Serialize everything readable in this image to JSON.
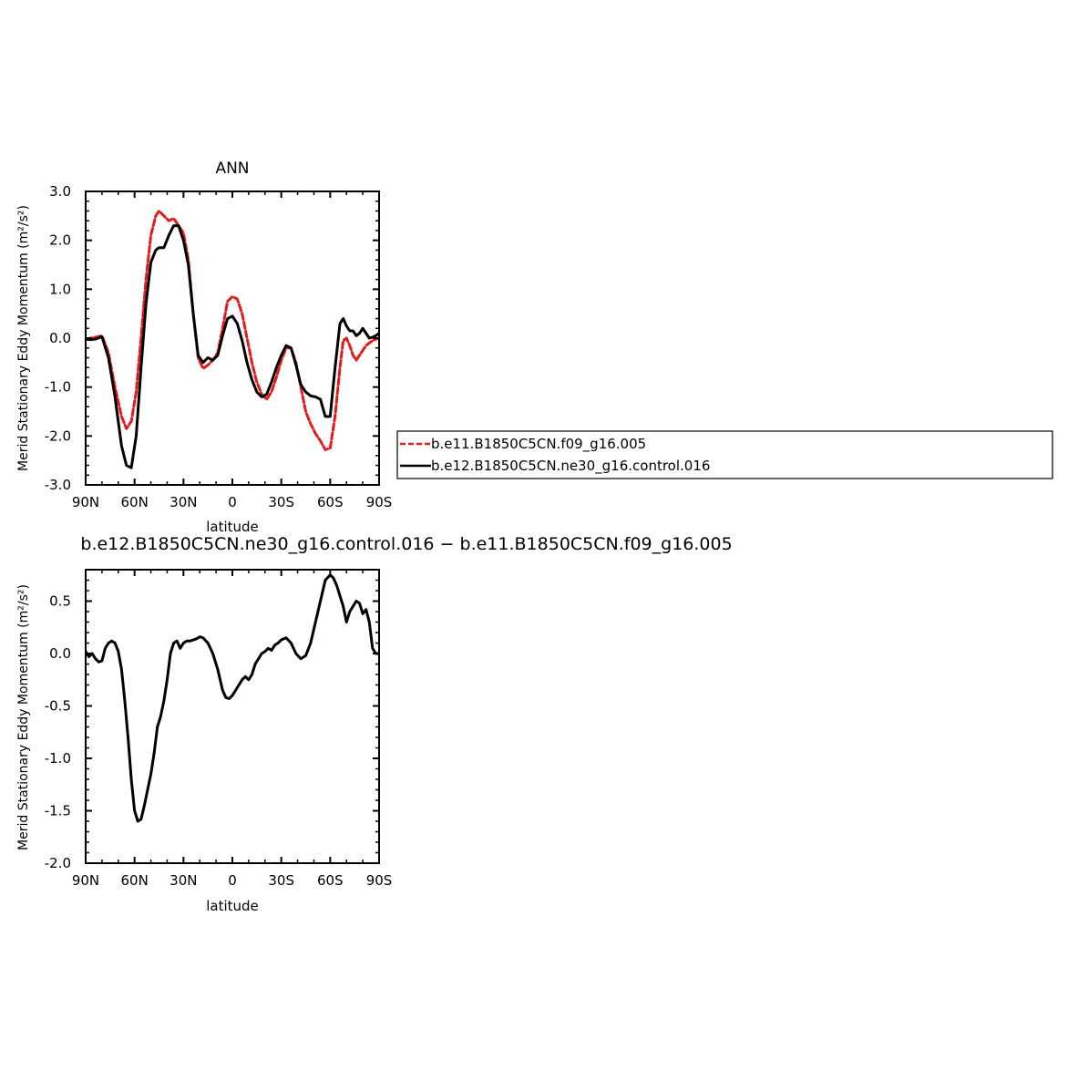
{
  "chart_data": [
    {
      "type": "line",
      "title": "ANN",
      "xlabel": "latitude",
      "ylabel": "Merid Stationary Eddy Momentum (m²/s²)",
      "xlim": [
        90,
        -90
      ],
      "ylim": [
        -3.0,
        3.0
      ],
      "x_ticks": [
        90,
        60,
        30,
        0,
        -30,
        -60,
        -90
      ],
      "x_tick_labels": [
        "90N",
        "60N",
        "30N",
        "0",
        "30S",
        "60S",
        "90S"
      ],
      "y_ticks": [
        -3.0,
        -2.0,
        -1.0,
        0.0,
        1.0,
        2.0,
        3.0
      ],
      "y_tick_labels": [
        "-3.0",
        "-2.0",
        "-1.0",
        "0.0",
        "1.0",
        "2.0",
        "3.0"
      ],
      "grid": false,
      "legend_position": "right",
      "series": [
        {
          "name": "b.e11.B1850C5CN.f09_g16.005",
          "color": "#e41a1c",
          "dash": "dashed",
          "x": [
            90,
            87,
            84,
            80,
            76,
            72,
            68,
            65,
            62,
            59,
            56,
            53,
            50,
            47,
            45,
            42,
            39,
            36,
            33,
            30,
            27,
            24,
            21,
            18,
            15,
            12,
            9,
            6,
            3,
            0,
            -3,
            -6,
            -9,
            -12,
            -15,
            -18,
            -21,
            -24,
            -27,
            -30,
            -33,
            -36,
            -39,
            -42,
            -45,
            -48,
            -51,
            -54,
            -57,
            -60,
            -63,
            -66,
            -68,
            -70,
            -72,
            -74,
            -76,
            -78,
            -80,
            -82,
            -84,
            -86,
            -88,
            -90
          ],
          "y": [
            -0.02,
            0.0,
            0.02,
            0.05,
            -0.3,
            -1.0,
            -1.6,
            -1.85,
            -1.7,
            -1.1,
            0.0,
            1.2,
            2.1,
            2.5,
            2.6,
            2.5,
            2.4,
            2.45,
            2.3,
            2.15,
            1.6,
            0.5,
            -0.4,
            -0.62,
            -0.55,
            -0.45,
            -0.3,
            0.2,
            0.75,
            0.85,
            0.8,
            0.5,
            0.0,
            -0.5,
            -0.9,
            -1.15,
            -1.25,
            -1.1,
            -0.8,
            -0.45,
            -0.2,
            -0.2,
            -0.5,
            -1.0,
            -1.5,
            -1.75,
            -1.95,
            -2.1,
            -2.28,
            -2.25,
            -1.6,
            -0.6,
            -0.05,
            0.0,
            -0.15,
            -0.35,
            -0.45,
            -0.35,
            -0.25,
            -0.15,
            -0.1,
            -0.05,
            -0.02,
            -0.01
          ]
        },
        {
          "name": "b.e12.B1850C5CN.ne30_g16.control.016",
          "color": "#000000",
          "dash": "solid",
          "x": [
            90,
            87,
            84,
            80,
            76,
            72,
            68,
            65,
            62,
            59,
            56,
            53,
            50,
            47,
            45,
            42,
            39,
            36,
            33,
            30,
            27,
            24,
            21,
            18,
            15,
            12,
            9,
            6,
            3,
            0,
            -3,
            -6,
            -9,
            -12,
            -15,
            -18,
            -21,
            -24,
            -27,
            -30,
            -33,
            -36,
            -39,
            -42,
            -45,
            -48,
            -51,
            -54,
            -57,
            -60,
            -63,
            -66,
            -68,
            -70,
            -72,
            -74,
            -76,
            -78,
            -80,
            -82,
            -84,
            -86,
            -88,
            -90
          ],
          "y": [
            -0.02,
            -0.03,
            -0.02,
            0.03,
            -0.4,
            -1.2,
            -2.2,
            -2.6,
            -2.65,
            -2.0,
            -0.6,
            0.7,
            1.55,
            1.8,
            1.85,
            1.85,
            2.1,
            2.3,
            2.3,
            2.0,
            1.5,
            0.5,
            -0.35,
            -0.5,
            -0.4,
            -0.45,
            -0.35,
            0.05,
            0.4,
            0.45,
            0.3,
            -0.05,
            -0.5,
            -0.85,
            -1.1,
            -1.2,
            -1.15,
            -0.9,
            -0.6,
            -0.35,
            -0.15,
            -0.2,
            -0.55,
            -0.95,
            -1.1,
            -1.18,
            -1.2,
            -1.25,
            -1.6,
            -1.6,
            -0.6,
            0.3,
            0.4,
            0.25,
            0.15,
            0.15,
            0.05,
            0.1,
            0.2,
            0.1,
            0.0,
            0.02,
            0.05,
            0.1
          ]
        }
      ]
    },
    {
      "type": "line",
      "title": "b.e12.B1850C5CN.ne30_g16.control.016 − b.e11.B1850C5CN.f09_g16.005",
      "xlabel": "latitude",
      "ylabel": "Merid Stationary Eddy Momentum (m²/s²)",
      "xlim": [
        90,
        -90
      ],
      "ylim": [
        -2.0,
        0.8
      ],
      "x_ticks": [
        90,
        60,
        30,
        0,
        -30,
        -60,
        -90
      ],
      "x_tick_labels": [
        "90N",
        "60N",
        "30N",
        "0",
        "30S",
        "60S",
        "90S"
      ],
      "y_ticks": [
        -2.0,
        -1.5,
        -1.0,
        -0.5,
        0.0,
        0.5
      ],
      "y_tick_labels": [
        "-2.0",
        "-1.5",
        "-1.0",
        "-0.5",
        "0.0",
        "0.5"
      ],
      "grid": false,
      "series": [
        {
          "color": "#000000",
          "dash": "solid",
          "x": [
            90,
            88,
            86,
            84,
            82,
            80,
            78,
            76,
            74,
            72,
            70,
            68,
            66,
            64,
            62,
            60,
            58,
            56,
            54,
            52,
            50,
            48,
            46,
            44,
            42,
            40,
            38,
            36,
            34,
            32,
            30,
            28,
            26,
            24,
            22,
            20,
            18,
            15,
            12,
            9,
            6,
            4,
            2,
            0,
            -2,
            -4,
            -6,
            -8,
            -10,
            -12,
            -14,
            -16,
            -18,
            -20,
            -22,
            -24,
            -26,
            -28,
            -30,
            -33,
            -36,
            -39,
            -42,
            -45,
            -48,
            -51,
            -54,
            -57,
            -60,
            -62,
            -64,
            -66,
            -68,
            -70,
            -72,
            -74,
            -76,
            -78,
            -80,
            -82,
            -84,
            -86,
            -88,
            -90
          ],
          "y": [
            0.02,
            -0.03,
            0.0,
            -0.05,
            -0.08,
            -0.07,
            0.05,
            0.1,
            0.12,
            0.1,
            0.02,
            -0.15,
            -0.45,
            -0.8,
            -1.2,
            -1.5,
            -1.6,
            -1.58,
            -1.45,
            -1.3,
            -1.15,
            -0.95,
            -0.7,
            -0.6,
            -0.45,
            -0.25,
            0.0,
            0.1,
            0.12,
            0.05,
            0.1,
            0.12,
            0.12,
            0.13,
            0.14,
            0.16,
            0.15,
            0.1,
            0.0,
            -0.15,
            -0.35,
            -0.42,
            -0.43,
            -0.4,
            -0.35,
            -0.3,
            -0.25,
            -0.22,
            -0.25,
            -0.2,
            -0.1,
            -0.05,
            0.0,
            0.02,
            0.05,
            0.03,
            0.08,
            0.1,
            0.13,
            0.15,
            0.1,
            0.0,
            -0.05,
            -0.02,
            0.1,
            0.3,
            0.5,
            0.7,
            0.75,
            0.72,
            0.65,
            0.55,
            0.45,
            0.3,
            0.4,
            0.45,
            0.5,
            0.48,
            0.38,
            0.42,
            0.3,
            0.05,
            0.0,
            0.0
          ]
        }
      ]
    }
  ]
}
